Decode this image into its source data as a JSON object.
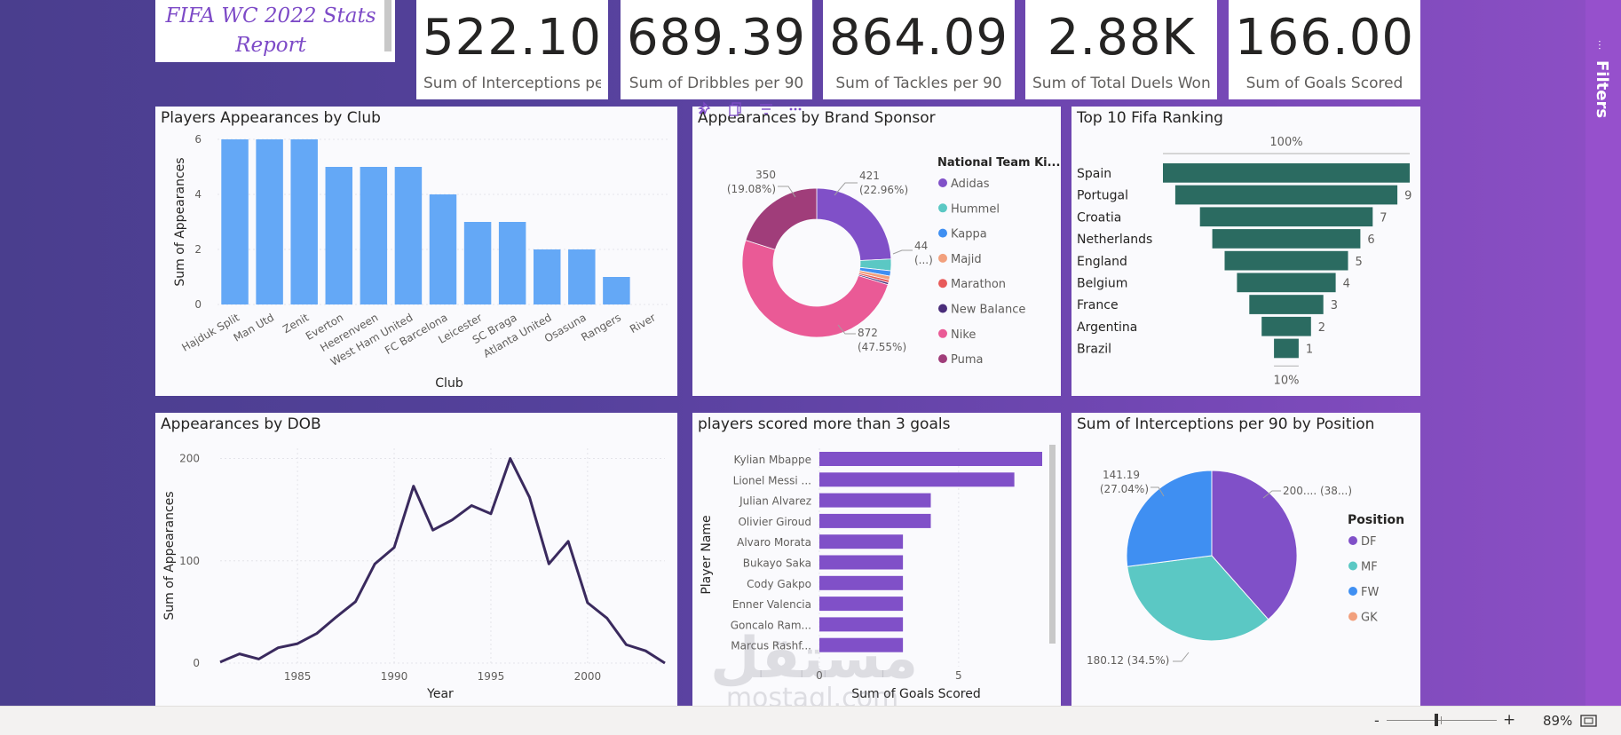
{
  "report_title": "FIFA WC 2022 Stats Report",
  "kpis": [
    {
      "value": "522.10",
      "label": "Sum of Interceptions pe..."
    },
    {
      "value": "689.39",
      "label": "Sum of Dribbles per 90"
    },
    {
      "value": "864.09",
      "label": "Sum of Tackles per 90"
    },
    {
      "value": "2.88K",
      "label": "Sum of Total Duels Won ..."
    },
    {
      "value": "166.00",
      "label": "Sum of Goals Scored"
    }
  ],
  "filters_pane": {
    "label": "Filters"
  },
  "visuals": {
    "club": {
      "title": "Players Appearances by Club"
    },
    "sponsor": {
      "title": "Appearances by Brand Sponsor"
    },
    "ranking": {
      "title": "Top 10 Fifa Ranking"
    },
    "dob": {
      "title": "Appearances by DOB"
    },
    "scorers": {
      "title": "players scored more than 3 goals"
    },
    "position": {
      "title": "Sum of Interceptions per 90 by Position"
    }
  },
  "chart_data": [
    {
      "id": "club",
      "type": "bar",
      "title": "Players Appearances by Club",
      "xlabel": "Club",
      "ylabel": "Sum of Appearances",
      "ylim": [
        0,
        6
      ],
      "yticks": [
        0,
        2,
        4,
        6
      ],
      "categories": [
        "Hajduk Split",
        "Man Utd",
        "Zenit",
        "Everton",
        "Heerenveen",
        "West Ham United",
        "FC Barcelona",
        "Leicester",
        "SC Braga",
        "Atlanta United",
        "Osasuna",
        "Rangers",
        "River"
      ],
      "values": [
        6,
        6,
        6,
        5,
        5,
        5,
        4,
        3,
        3,
        2,
        2,
        1,
        0
      ],
      "color": "#64a8f6",
      "grid": true
    },
    {
      "id": "sponsor",
      "type": "pie",
      "title": "Appearances by Brand Sponsor",
      "donut": true,
      "legend_title": "National Team Ki...",
      "legend_position": "right",
      "categories": [
        "Adidas",
        "Hummel",
        "Kappa",
        "Majid",
        "Marathon",
        "New Balance",
        "Nike",
        "Puma"
      ],
      "values": [
        421,
        44,
        20,
        15,
        10,
        8,
        872,
        350
      ],
      "colors": [
        "#8050c8",
        "#5bc8c4",
        "#3f8ff2",
        "#f2a07d",
        "#e85a5a",
        "#4a2d7a",
        "#ea5a96",
        "#a03d7a"
      ],
      "data_labels": [
        {
          "value": "421",
          "pct": "(22.96%)"
        },
        {
          "value": "44",
          "pct": "(...)"
        },
        {
          "value": "872",
          "pct": "(47.55%)"
        },
        {
          "value": "350",
          "pct": "(19.08%)"
        }
      ]
    },
    {
      "id": "ranking",
      "type": "bar",
      "subtype": "funnel",
      "title": "Top 10 Fifa Ranking",
      "top_label": "100%",
      "bottom_label": "10%",
      "categories": [
        "Spain",
        "Portugal",
        "Croatia",
        "Netherlands",
        "England",
        "Belgium",
        "France",
        "Argentina",
        "Brazil"
      ],
      "values": [
        10,
        9,
        7,
        6,
        5,
        4,
        3,
        2,
        1
      ],
      "value_labels": [
        "",
        "9",
        "7",
        "6",
        "5",
        "4",
        "3",
        "2",
        "1"
      ],
      "color": "#2b6b61"
    },
    {
      "id": "dob",
      "type": "line",
      "title": "Appearances by DOB",
      "xlabel": "Year",
      "ylabel": "Sum of Appearances",
      "xlim": [
        1981,
        2004
      ],
      "ylim": [
        0,
        210
      ],
      "xticks": [
        1985,
        1990,
        1995,
        2000
      ],
      "yticks": [
        0,
        100,
        200
      ],
      "x": [
        1981,
        1982,
        1983,
        1984,
        1985,
        1986,
        1987,
        1988,
        1989,
        1990,
        1991,
        1992,
        1993,
        1994,
        1995,
        1996,
        1997,
        1998,
        1999,
        2000,
        2001,
        2002,
        2003,
        2004
      ],
      "y": [
        1,
        9,
        4,
        15,
        19,
        29,
        45,
        60,
        97,
        113,
        173,
        130,
        140,
        154,
        146,
        200,
        162,
        97,
        119,
        59,
        44,
        18,
        12,
        0
      ],
      "color": "#3a2a5e",
      "grid": true
    },
    {
      "id": "scorers",
      "type": "bar",
      "orientation": "horizontal",
      "title": "players scored more than 3 goals",
      "xlabel": "Sum of Goals Scored",
      "ylabel": "Player Name",
      "xticks": [
        0,
        5
      ],
      "xlim": [
        0,
        8
      ],
      "categories": [
        "Kylian Mbappe",
        "Lionel Messi ...",
        "Julian Alvarez",
        "Olivier Giroud",
        "Alvaro Morata",
        "Bukayo Saka",
        "Cody Gakpo",
        "Enner Valencia",
        "Goncalo Ram...",
        "Marcus Rashf..."
      ],
      "values": [
        8,
        7,
        4,
        4,
        3,
        3,
        3,
        3,
        3,
        3
      ],
      "color": "#8050c8"
    },
    {
      "id": "position",
      "type": "pie",
      "title": "Sum of Interceptions per 90 by Position",
      "legend_title": "Position",
      "legend_position": "right",
      "categories": [
        "DF",
        "MF",
        "FW",
        "GK"
      ],
      "values": [
        200.79,
        180.12,
        141.19,
        0
      ],
      "colors": [
        "#8050c8",
        "#5bc8c4",
        "#3f8ff2",
        "#f2a07d"
      ],
      "data_labels": [
        {
          "text": "200.... (38...)"
        },
        {
          "text": "180.12 (34.5%)"
        },
        {
          "text": "141.19",
          "pct": "(27.04%)"
        }
      ]
    }
  ],
  "status_bar": {
    "minus": "-",
    "plus": "+",
    "zoom": "89%"
  }
}
